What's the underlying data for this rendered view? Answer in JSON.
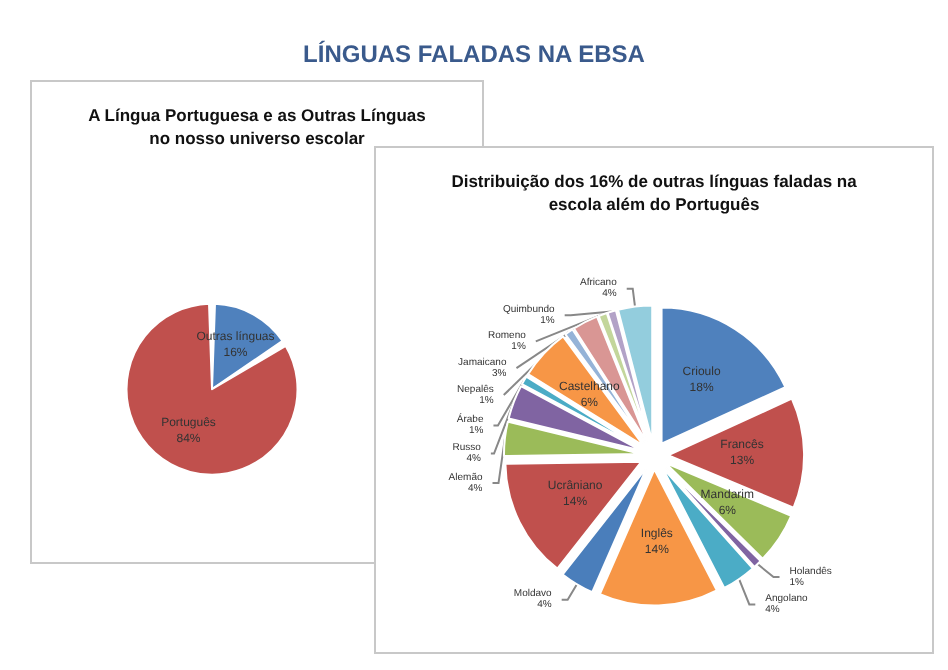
{
  "chart_data": [
    {
      "type": "other",
      "title": "LÍNGUAS FALADAS NA EBSA"
    },
    {
      "type": "pie",
      "title": "A Língua Portuguesa e as Outras Línguas\nno nosso universo escolar",
      "categories": [
        "Outras línguas",
        "Português"
      ],
      "values": [
        16,
        84
      ],
      "value_labels": [
        "16%",
        "84%"
      ],
      "colors": [
        "#4f81bd",
        "#c0504d"
      ],
      "legend": false
    },
    {
      "type": "pie",
      "title": "Distribuição dos 16% de outras línguas faladas na\nescola além do Português",
      "categories": [
        "Crioulo",
        "Francês",
        "Mandarim",
        "Holandês",
        "Angolano",
        "Inglês",
        "Moldavo",
        "Ucrâniano",
        "Alemão",
        "Russo",
        "Árabe",
        "Castelhano",
        "Nepalês",
        "Jamaicano",
        "Romeno",
        "Quimbundo",
        "Africano"
      ],
      "values": [
        18,
        13,
        6,
        1,
        4,
        14,
        4,
        14,
        4,
        4,
        1,
        6,
        1,
        3,
        1,
        1,
        4
      ],
      "value_labels": [
        "18%",
        "13%",
        "6%",
        "1%",
        "4%",
        "14%",
        "4%",
        "14%",
        "4%",
        "4%",
        "1%",
        "6%",
        "1%",
        "3%",
        "1%",
        "1%",
        "4%"
      ],
      "colors": [
        "#4f81bd",
        "#c0504d",
        "#9bbb59",
        "#8064a2",
        "#4bacc6",
        "#f79646",
        "#4a7ebb",
        "#c0504d",
        "#9bbb59",
        "#8064a2",
        "#4bacc6",
        "#f79646",
        "#95b3d7",
        "#d99694",
        "#c3d69b",
        "#b2a2c7",
        "#93cddd"
      ],
      "legend": false
    }
  ]
}
